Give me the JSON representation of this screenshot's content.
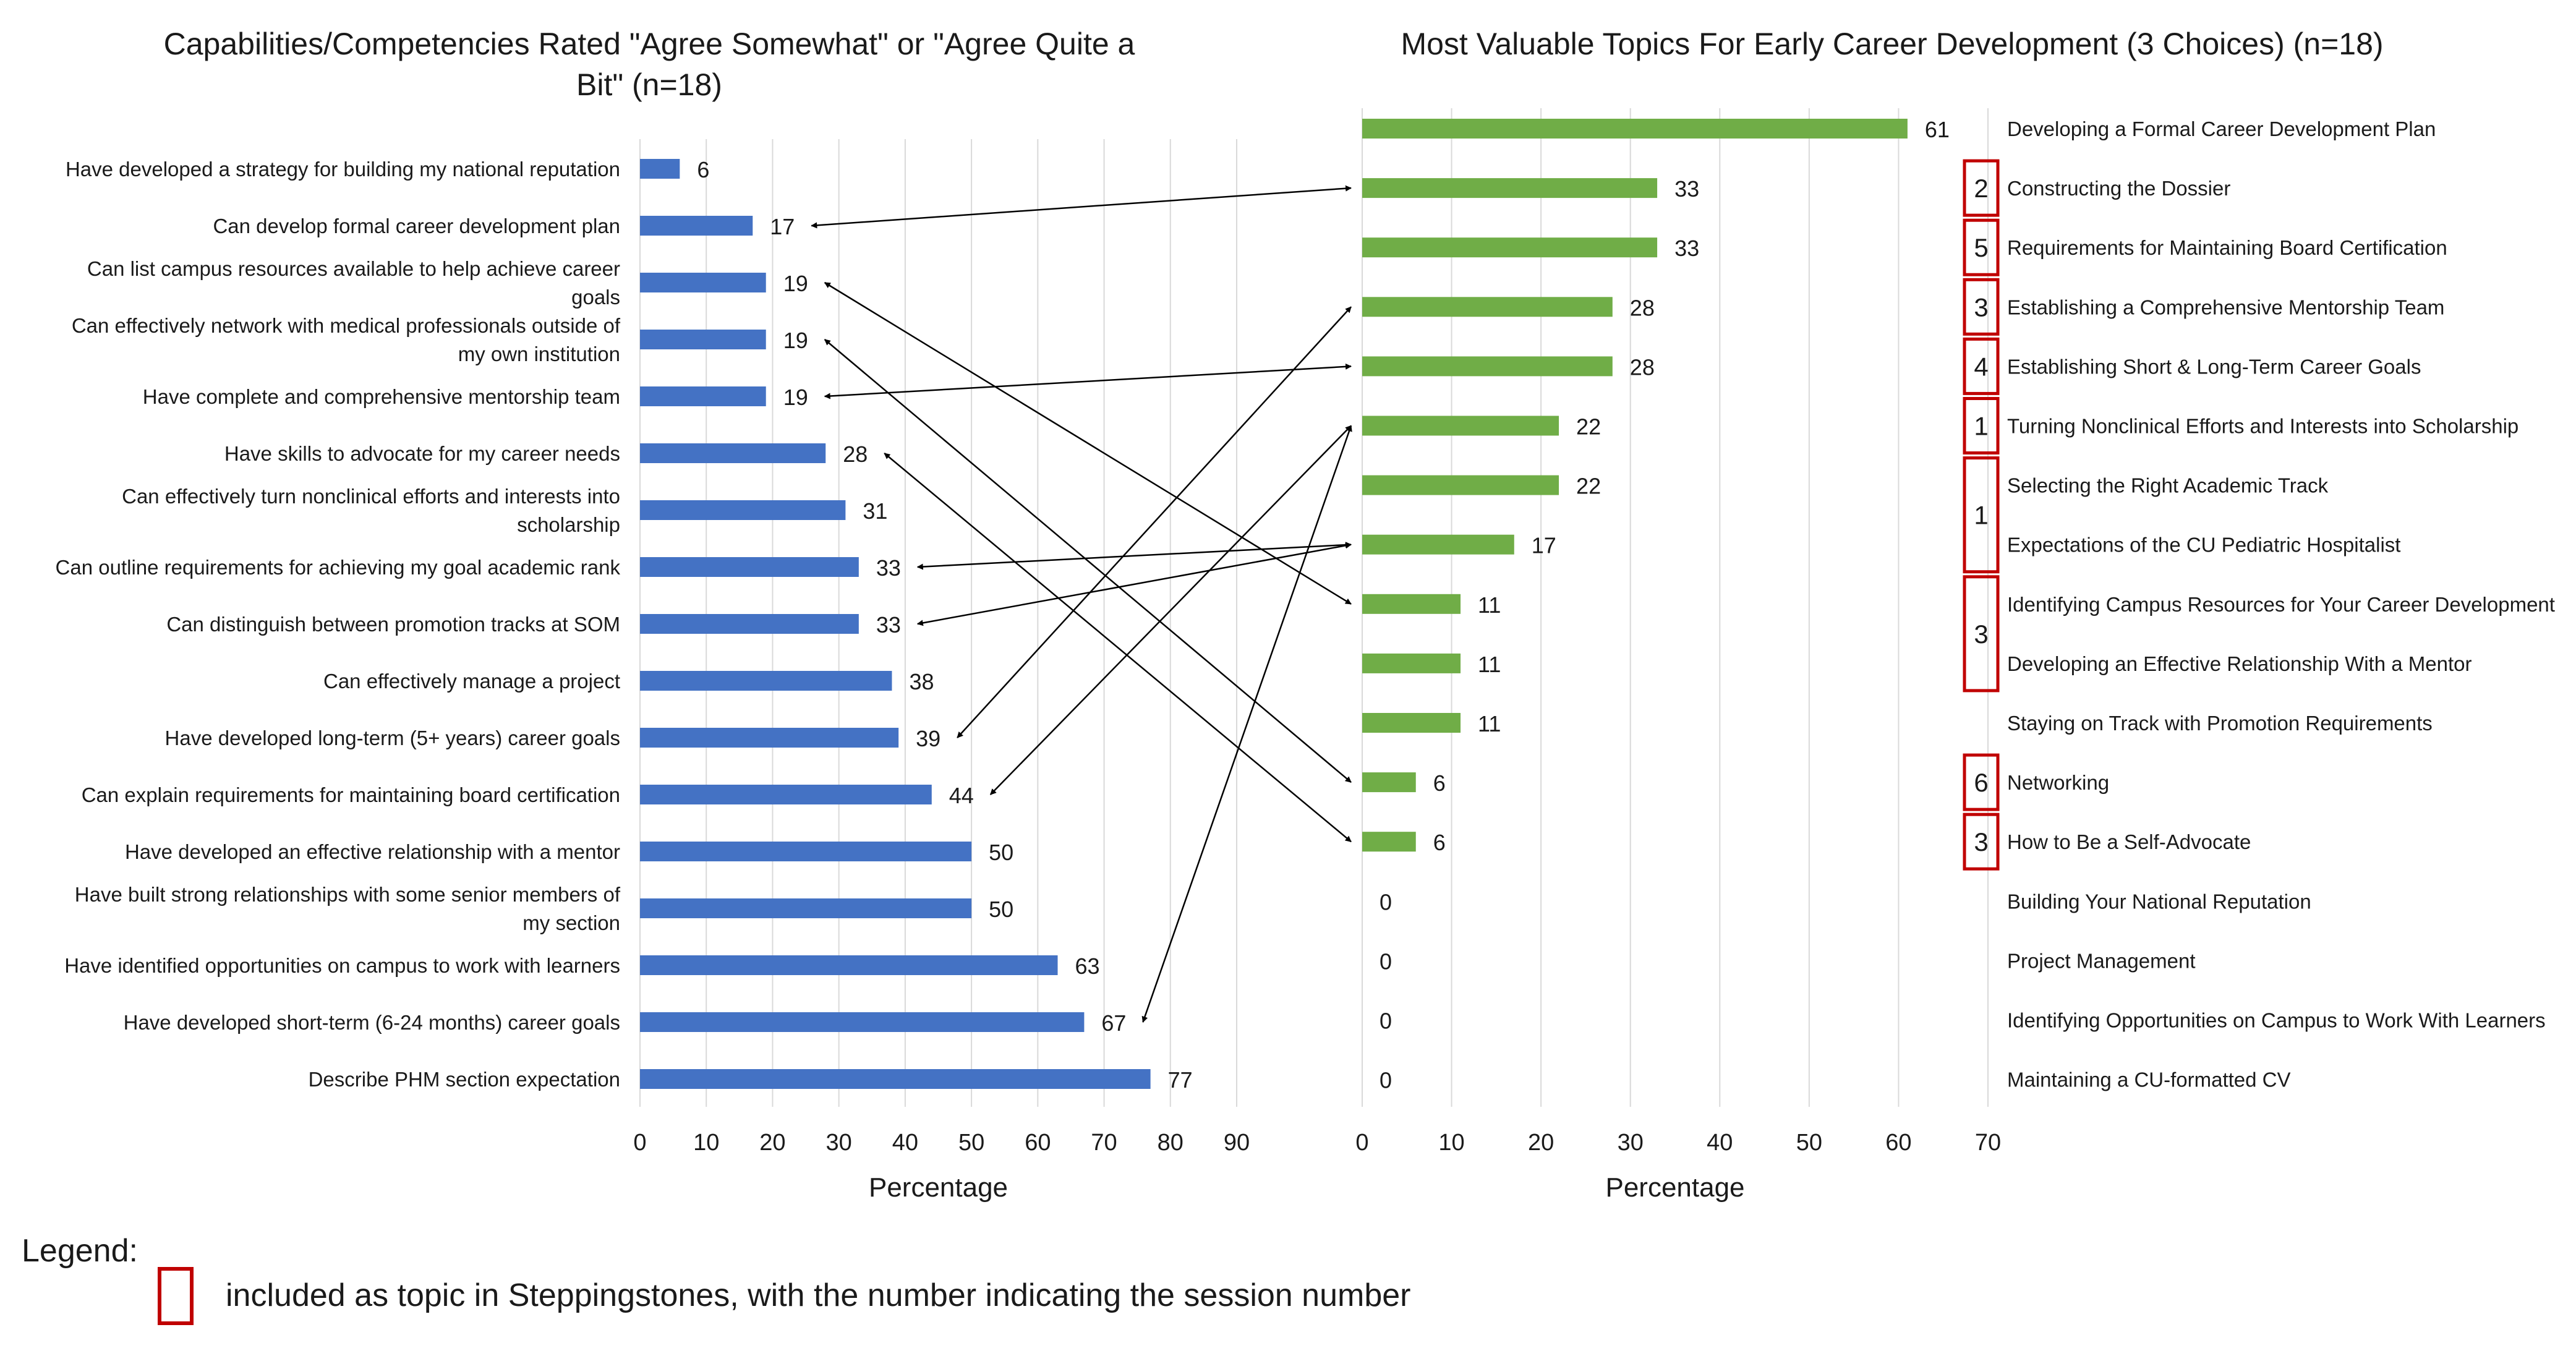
{
  "legend": {
    "title": "Legend:",
    "text": "included as topic in Steppingstones, with the number indicating the session number",
    "box_color": "#c00000"
  },
  "chart_data": [
    {
      "type": "bar",
      "orientation": "horizontal",
      "title": "Capabilities/Competencies Rated \"Agree Somewhat\" or \"Agree Quite a Bit\" (n=18)",
      "title_lines": [
        "Capabilities/Competencies Rated \"Agree Somewhat\" or \"Agree Quite a",
        "Bit\" (n=18)"
      ],
      "xlabel": "Percentage",
      "xlim": [
        0,
        90
      ],
      "xticks": [
        0,
        10,
        20,
        30,
        40,
        50,
        60,
        70,
        80,
        90
      ],
      "grid": true,
      "color": "#4472c4",
      "categories": [
        [
          "Have developed a strategy for building my national reputation"
        ],
        [
          "Can develop formal career development plan"
        ],
        [
          "Can list campus resources available to help achieve career",
          "goals"
        ],
        [
          "Can effectively network with medical professionals outside of",
          "my own institution"
        ],
        [
          "Have complete and comprehensive mentorship team"
        ],
        [
          "Have skills to advocate for my career needs"
        ],
        [
          "Can effectively turn nonclinical efforts and interests into",
          "scholarship"
        ],
        [
          "Can outline requirements for achieving my goal academic rank"
        ],
        [
          "Can distinguish between promotion tracks at SOM"
        ],
        [
          "Can effectively manage a project"
        ],
        [
          "Have developed long-term (5+ years) career goals"
        ],
        [
          "Can explain requirements for maintaining board certification"
        ],
        [
          "Have developed an effective relationship with a mentor"
        ],
        [
          "Have built strong relationships with some senior members of",
          "my section"
        ],
        [
          "Have identified opportunities on campus to work with learners"
        ],
        [
          "Have developed short-term (6-24 months) career goals"
        ],
        [
          "Describe PHM section expectation"
        ]
      ],
      "values": [
        6,
        17,
        19,
        19,
        19,
        28,
        31,
        33,
        33,
        38,
        39,
        44,
        50,
        50,
        63,
        67,
        77
      ]
    },
    {
      "type": "bar",
      "orientation": "horizontal",
      "title": "Most Valuable Topics For Early Career Development (3 Choices) (n=18)",
      "xlabel": "Percentage",
      "xlim": [
        0,
        70
      ],
      "xticks": [
        0,
        10,
        20,
        30,
        40,
        50,
        60,
        70
      ],
      "grid": true,
      "color": "#70ad47",
      "session_box_color": "#c00000",
      "categories": [
        "Developing a Formal Career Development Plan",
        "Constructing the Dossier",
        "Requirements for Maintaining Board Certification",
        "Establishing a Comprehensive Mentorship Team",
        "Establishing Short & Long-Term Career Goals",
        "Turning Nonclinical Efforts and Interests into Scholarship",
        "Selecting the Right Academic Track",
        "Expectations of the CU Pediatric Hospitalist",
        "Identifying Campus Resources for Your Career Development",
        "Developing an Effective Relationship With a Mentor",
        "Staying on Track with Promotion Requirements",
        "Networking",
        "How to Be a Self-Advocate",
        "Building Your National Reputation",
        "Project Management",
        "Identifying Opportunities on Campus to Work With Learners",
        "Maintaining a CU-formatted CV"
      ],
      "values": [
        61,
        33,
        33,
        28,
        28,
        22,
        22,
        17,
        11,
        11,
        11,
        6,
        6,
        0,
        0,
        0,
        0
      ],
      "session_boxes": [
        {
          "rows": [
            1
          ],
          "label": "2"
        },
        {
          "rows": [
            2
          ],
          "label": "5"
        },
        {
          "rows": [
            3
          ],
          "label": "3"
        },
        {
          "rows": [
            4
          ],
          "label": "4"
        },
        {
          "rows": [
            5
          ],
          "label": "1"
        },
        {
          "rows": [
            6,
            7
          ],
          "label": "1"
        },
        {
          "rows": [
            8,
            9
          ],
          "label": "3"
        },
        {
          "rows": [
            11
          ],
          "label": "6"
        },
        {
          "rows": [
            12
          ],
          "label": "3"
        }
      ]
    }
  ],
  "arrows": [
    {
      "left_row": 1,
      "right_row": 1
    },
    {
      "left_row": 2,
      "right_row": 8
    },
    {
      "left_row": 3,
      "right_row": 11
    },
    {
      "left_row": 4,
      "right_row": 4
    },
    {
      "left_row": 5,
      "right_row": 12
    },
    {
      "left_row": 7,
      "right_row": 7
    },
    {
      "left_row": 8,
      "right_row": 7
    },
    {
      "left_row": 10,
      "right_row": 3
    },
    {
      "left_row": 11,
      "right_row": 5
    },
    {
      "left_row": 15,
      "right_row": 5
    }
  ]
}
